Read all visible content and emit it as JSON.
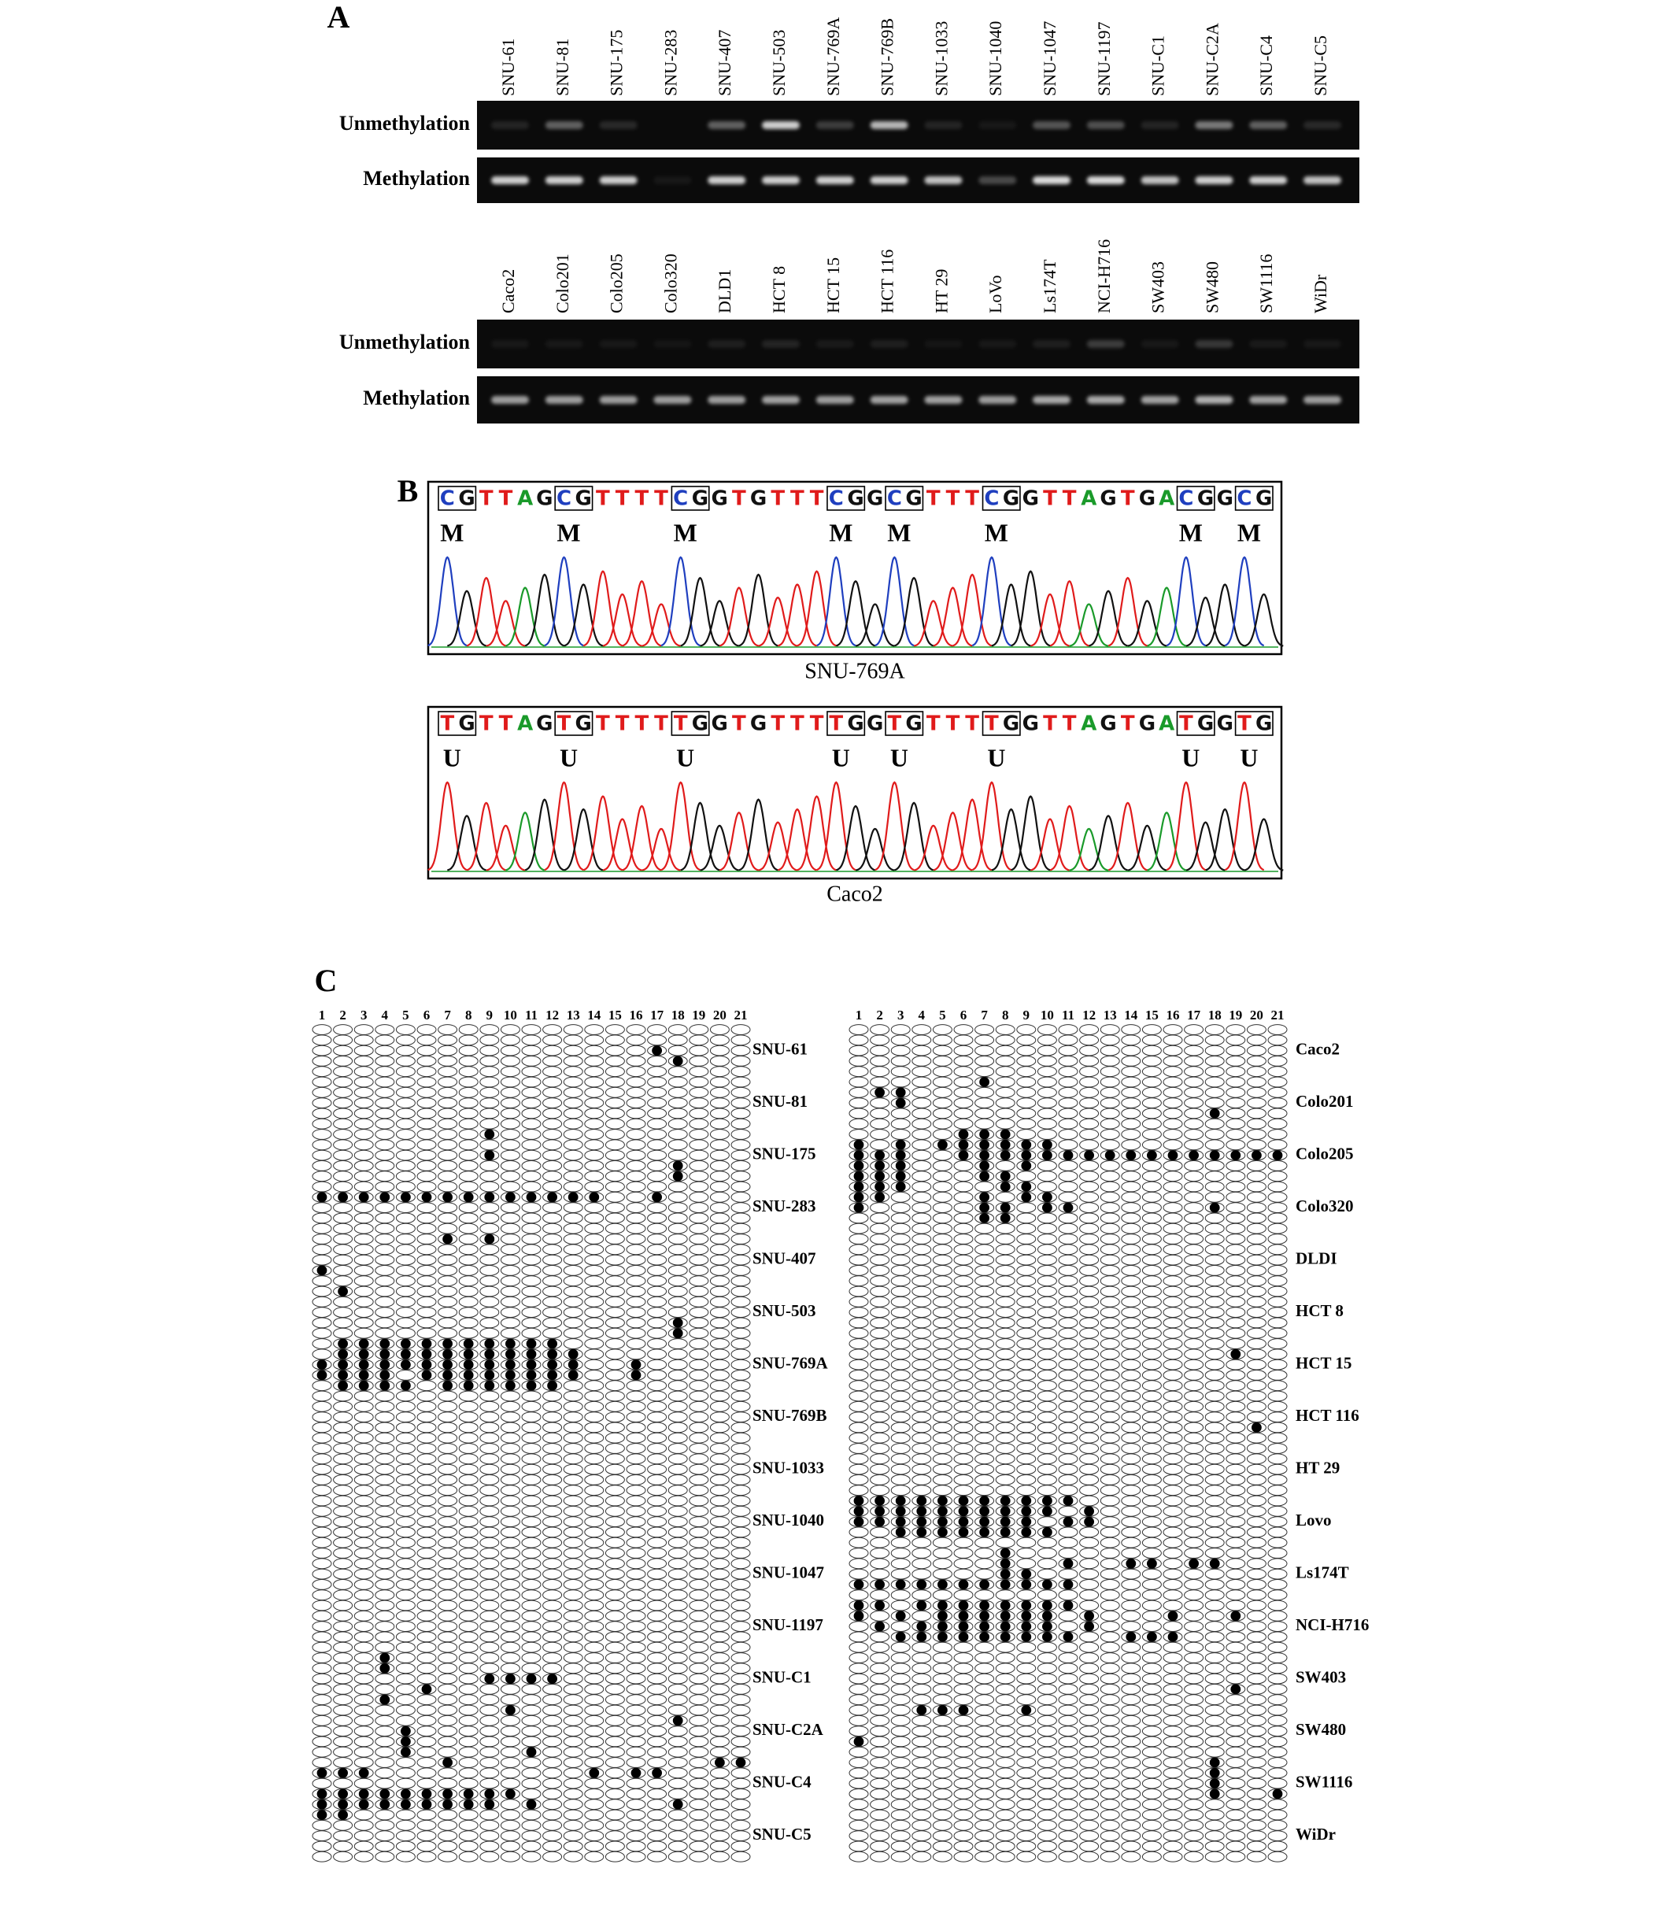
{
  "panel_a": {
    "label": "A",
    "gels": [
      {
        "lanes": [
          "SNU-61",
          "SNU-81",
          "SNU-175",
          "SNU-283",
          "SNU-407",
          "SNU-503",
          "SNU-769A",
          "SNU-769B",
          "SNU-1033",
          "SNU-1040",
          "SNU-1047",
          "SNU-1197",
          "SNU-C1",
          "SNU-C2A",
          "SNU-C4",
          "SNU-C5"
        ],
        "rows": [
          "Unmethylation",
          "Methylation"
        ]
      },
      {
        "lanes": [
          "Caco2",
          "Colo201",
          "Colo205",
          "Colo320",
          "DLD1",
          "HCT 8",
          "HCT 15",
          "HCT 116",
          "HT 29",
          "LoVo",
          "Ls174T",
          "NCI-H716",
          "SW403",
          "SW480",
          "SW1116",
          "WiDr"
        ],
        "rows": [
          "Unmethylation",
          "Methylation"
        ]
      }
    ]
  },
  "panel_b": {
    "label": "B",
    "traces": [
      {
        "sequence": [
          "C",
          "G",
          "T",
          "T",
          "A",
          "G",
          "C",
          "G",
          "T",
          "T",
          "T",
          "T",
          "C",
          "G",
          "G",
          "T",
          "G",
          "T",
          "T",
          "T",
          "C",
          "G",
          "G",
          "C",
          "G",
          "T",
          "T",
          "T",
          "C",
          "G",
          "G",
          "T",
          "T",
          "A",
          "G",
          "T",
          "G",
          "A",
          "C",
          "G",
          "G",
          "C",
          "G"
        ],
        "marks": [
          "M",
          "M",
          "M",
          "M",
          "M",
          "M",
          "M",
          "M"
        ],
        "sample": "SNU-769A"
      },
      {
        "sequence": [
          "T",
          "G",
          "T",
          "T",
          "A",
          "G",
          "T",
          "G",
          "T",
          "T",
          "T",
          "T",
          "T",
          "G",
          "G",
          "T",
          "G",
          "T",
          "T",
          "T",
          "T",
          "G",
          "G",
          "T",
          "G",
          "T",
          "T",
          "T",
          "T",
          "G",
          "G",
          "T",
          "T",
          "A",
          "G",
          "T",
          "G",
          "A",
          "T",
          "G",
          "G",
          "T",
          "G"
        ],
        "marks": [
          "U",
          "U",
          "U",
          "U",
          "U",
          "U",
          "U",
          "U"
        ],
        "sample": "Caco2"
      }
    ]
  },
  "panel_c": {
    "label": "C",
    "sites": [
      1,
      2,
      3,
      4,
      5,
      6,
      7,
      8,
      9,
      10,
      11,
      12,
      13,
      14,
      15,
      16,
      17,
      18,
      19,
      20,
      21
    ],
    "groups": [
      {
        "samples": [
          {
            "name": "SNU-61",
            "methylated": [
              [],
              [],
              [
                17
              ],
              [
                18
              ],
              []
            ]
          },
          {
            "name": "SNU-81",
            "methylated": [
              [],
              [],
              [],
              [],
              []
            ]
          },
          {
            "name": "SNU-175",
            "methylated": [
              [
                9
              ],
              [],
              [
                9
              ],
              [
                18
              ],
              [
                18
              ]
            ]
          },
          {
            "name": "SNU-283",
            "methylated": [
              [],
              [
                1,
                2,
                3,
                4,
                5,
                6,
                7,
                8,
                9,
                10,
                11,
                12,
                13,
                14,
                17
              ],
              [],
              [],
              []
            ]
          },
          {
            "name": "SNU-407",
            "methylated": [
              [
                7,
                9
              ],
              [],
              [],
              [
                1
              ],
              []
            ]
          },
          {
            "name": "SNU-503",
            "methylated": [
              [
                2
              ],
              [],
              [],
              [
                18
              ],
              [
                18
              ]
            ]
          },
          {
            "name": "SNU-769A",
            "methylated": [
              [
                2,
                3,
                4,
                5,
                6,
                7,
                8,
                9,
                10,
                11,
                12
              ],
              [
                2,
                3,
                4,
                5,
                6,
                7,
                8,
                9,
                10,
                11,
                12,
                13
              ],
              [
                1,
                2,
                3,
                4,
                5,
                6,
                7,
                8,
                9,
                10,
                11,
                12,
                13,
                16
              ],
              [
                1,
                2,
                3,
                4,
                6,
                7,
                8,
                9,
                10,
                11,
                12,
                13,
                16
              ],
              [
                2,
                3,
                4,
                5,
                7,
                8,
                9,
                10,
                11,
                12
              ]
            ]
          },
          {
            "name": "SNU-769B",
            "methylated": [
              [],
              [],
              [],
              [],
              []
            ]
          },
          {
            "name": "SNU-1033",
            "methylated": [
              [],
              [],
              [],
              [],
              []
            ]
          },
          {
            "name": "SNU-1040",
            "methylated": [
              [],
              [],
              [],
              [],
              []
            ]
          },
          {
            "name": "SNU-1047",
            "methylated": [
              [],
              [],
              [],
              [],
              []
            ]
          },
          {
            "name": "SNU-1197",
            "methylated": [
              [],
              [],
              [],
              [],
              []
            ]
          },
          {
            "name": "SNU-C1",
            "methylated": [
              [
                4
              ],
              [
                4
              ],
              [
                9,
                10,
                11,
                12
              ],
              [
                6
              ],
              [
                4
              ]
            ]
          },
          {
            "name": "SNU-C2A",
            "methylated": [
              [
                10
              ],
              [
                18
              ],
              [
                5
              ],
              [
                5
              ],
              [
                5,
                11
              ]
            ]
          },
          {
            "name": "SNU-C4",
            "methylated": [
              [
                7,
                20,
                21
              ],
              [
                1,
                2,
                3,
                14,
                16,
                17
              ],
              [],
              [
                1,
                2,
                3,
                4,
                5,
                6,
                7,
                8,
                9,
                10
              ],
              [
                1,
                2,
                3,
                4,
                5,
                6,
                7,
                8,
                9,
                11,
                18
              ]
            ]
          },
          {
            "name": "SNU-C5",
            "methylated": [
              [
                1,
                2
              ],
              [],
              [],
              [],
              []
            ]
          }
        ]
      },
      {
        "samples": [
          {
            "name": "Caco2",
            "methylated": [
              [],
              [],
              [],
              [],
              []
            ]
          },
          {
            "name": "Colo201",
            "methylated": [
              [
                7
              ],
              [
                2,
                3
              ],
              [
                3
              ],
              [
                18
              ],
              []
            ]
          },
          {
            "name": "Colo205",
            "methylated": [
              [
                6,
                7,
                8
              ],
              [
                1,
                3,
                5,
                6,
                7,
                8,
                9,
                10
              ],
              [
                1,
                2,
                3,
                6,
                7,
                8,
                9,
                10,
                11,
                12,
                13,
                14,
                15,
                16,
                17,
                18,
                19,
                20,
                21
              ],
              [
                1,
                2,
                3,
                7,
                9
              ],
              [
                1,
                2,
                3,
                7,
                8
              ]
            ]
          },
          {
            "name": "Colo320",
            "methylated": [
              [
                1,
                2,
                3,
                8,
                9
              ],
              [
                1,
                2,
                7,
                9,
                10
              ],
              [
                1,
                7,
                8,
                10,
                11,
                18
              ],
              [
                7,
                8
              ],
              []
            ]
          },
          {
            "name": "DLDI",
            "methylated": [
              [],
              [],
              [],
              [],
              []
            ]
          },
          {
            "name": "HCT 8",
            "methylated": [
              [],
              [],
              [],
              [],
              []
            ]
          },
          {
            "name": "HCT 15",
            "methylated": [
              [],
              [
                19
              ],
              [],
              [],
              []
            ]
          },
          {
            "name": "HCT 116",
            "methylated": [
              [],
              [],
              [],
              [
                20
              ],
              []
            ]
          },
          {
            "name": "HT 29",
            "methylated": [
              [],
              [],
              [],
              [],
              []
            ]
          },
          {
            "name": "Lovo",
            "methylated": [
              [
                1,
                2,
                3,
                4,
                5,
                6,
                7,
                8,
                9,
                10,
                11
              ],
              [
                1,
                2,
                3,
                4,
                5,
                6,
                7,
                8,
                9,
                10,
                12
              ],
              [
                1,
                2,
                3,
                4,
                5,
                6,
                7,
                8,
                9,
                11,
                12
              ],
              [
                3,
                4,
                5,
                6,
                7,
                8,
                9,
                10
              ],
              []
            ]
          },
          {
            "name": "Ls174T",
            "methylated": [
              [
                8
              ],
              [
                8,
                11,
                14,
                15,
                17,
                18
              ],
              [
                8,
                9
              ],
              [
                1,
                2,
                3,
                4,
                5,
                6,
                7,
                8,
                9,
                10,
                11
              ],
              []
            ]
          },
          {
            "name": "NCI-H716",
            "methylated": [
              [
                1,
                2,
                4,
                5,
                6,
                7,
                8,
                9,
                10,
                11
              ],
              [
                1,
                3,
                5,
                6,
                7,
                8,
                9,
                10,
                12,
                16,
                19
              ],
              [
                2,
                4,
                5,
                6,
                7,
                8,
                9,
                10,
                12
              ],
              [
                3,
                4,
                5,
                6,
                7,
                8,
                9,
                10,
                11,
                14,
                15,
                16
              ],
              []
            ]
          },
          {
            "name": "SW403",
            "methylated": [
              [],
              [],
              [],
              [
                19
              ],
              []
            ]
          },
          {
            "name": "SW480",
            "methylated": [
              [
                4,
                5,
                6,
                9
              ],
              [],
              [],
              [
                1
              ],
              []
            ]
          },
          {
            "name": "SW1116",
            "methylated": [
              [
                18
              ],
              [
                18
              ],
              [
                18
              ],
              [
                18,
                21
              ],
              []
            ]
          },
          {
            "name": "WiDr",
            "methylated": [
              [],
              [],
              [],
              [],
              []
            ]
          }
        ]
      }
    ]
  }
}
